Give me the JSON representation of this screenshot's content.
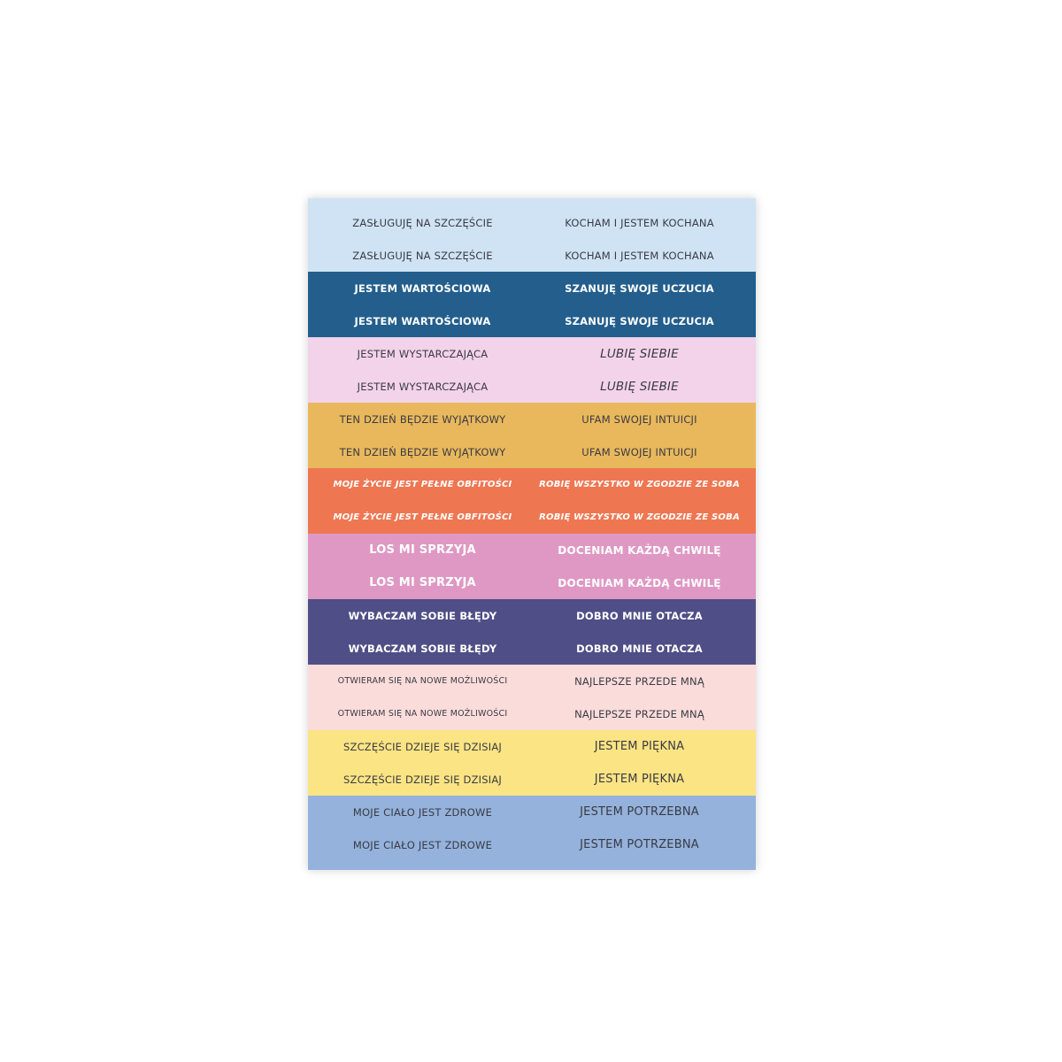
{
  "bands": [
    {
      "bg": "#cfe3f4",
      "color": "#3a3a44",
      "size": 11.5,
      "weight": 400,
      "italic": false,
      "left": "ZASŁUGUJĘ NA SZCZĘŚCIE",
      "right": "KOCHAM I JESTEM KOCHANA"
    },
    {
      "bg": "#235e8c",
      "color": "#ffffff",
      "size": 11.5,
      "weight": 700,
      "italic": false,
      "left": "JESTEM WARTOŚCIOWA",
      "right": "SZANUJĘ SWOJE UCZUCIA"
    },
    {
      "bg": "#f3d3e9",
      "color": "#3a3a44",
      "size": 11.5,
      "weight": 400,
      "italic": true,
      "left": "JESTEM WYSTARCZAJĄCA",
      "right": "LUBIĘ SIEBIE",
      "right_size": 13.5
    },
    {
      "bg": "#e9b85c",
      "color": "#3a3a44",
      "size": 11.5,
      "weight": 400,
      "italic": false,
      "left": "TEN DZIEŃ BĘDZIE WYJĄTKOWY",
      "right": "UFAM SWOJEJ INTUICJI"
    },
    {
      "bg": "#ee7752",
      "color": "#ffffff",
      "size": 10,
      "weight": 700,
      "italic": true,
      "left": "MOJE ŻYCIE JEST PEŁNE OBFITOŚCI",
      "right": "ROBIĘ WSZYSTKO W ZGODZIE ZE SOBA"
    },
    {
      "bg": "#df98c4",
      "color": "#ffffff",
      "size": 12,
      "weight": 700,
      "italic": false,
      "left": "LOS MI SPRZYJA",
      "right": "DOCENIAM KAŻDĄ CHWILĘ",
      "left_size": 13
    },
    {
      "bg": "#4f4e87",
      "color": "#ffffff",
      "size": 11.5,
      "weight": 700,
      "italic": false,
      "left": "WYBACZAM SOBIE BŁĘDY",
      "right": "DOBRO MNIE OTACZA"
    },
    {
      "bg": "#fadcdb",
      "color": "#3a3a44",
      "size": 9.5,
      "weight": 400,
      "italic": false,
      "left": "OTWIERAM SIĘ NA NOWE MOŻLIWOŚCI",
      "right": "NAJLEPSZE PRZEDE MNĄ",
      "right_size": 11.5
    },
    {
      "bg": "#fbe483",
      "color": "#3a3a44",
      "size": 11.5,
      "weight": 400,
      "italic": false,
      "left": "SZCZĘŚCIE DZIEJE SIĘ DZISIAJ",
      "right": "JESTEM PIĘKNA",
      "right_size": 13
    },
    {
      "bg": "#94b2db",
      "color": "#3a3a44",
      "size": 11.5,
      "weight": 400,
      "italic": false,
      "left": "MOJE CIAŁO JEST ZDROWE",
      "right": "JESTEM POTRZEBNA",
      "right_size": 13
    }
  ]
}
